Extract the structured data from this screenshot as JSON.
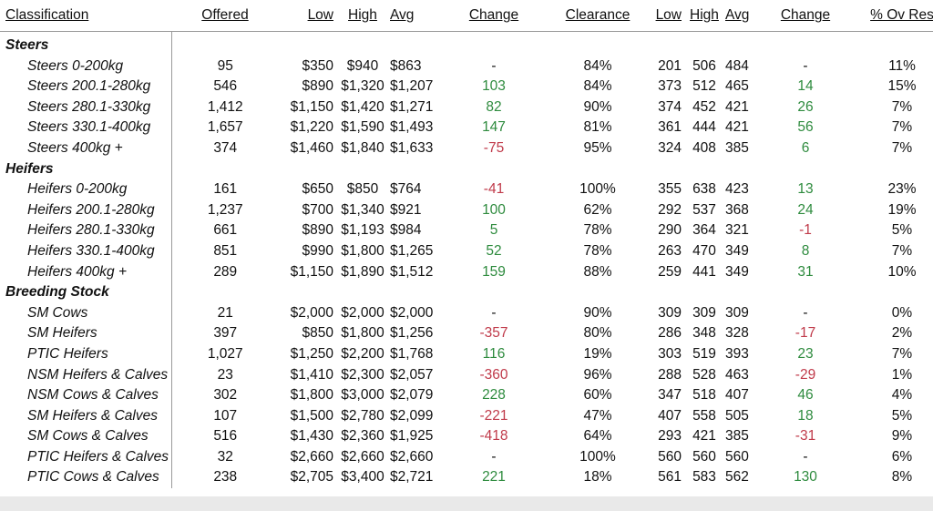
{
  "headers": {
    "classification": "Classification",
    "offered": "Offered",
    "low": "Low",
    "high": "High",
    "avg": "Avg",
    "change": "Change",
    "clearance": "Clearance",
    "low2": "Low",
    "high2": "High",
    "avg2": "Avg",
    "change2": "Change",
    "pct_ov_res": "% Ov Res"
  },
  "colors": {
    "positive": "#2e8b3e",
    "negative": "#c03a4a"
  },
  "groups": [
    {
      "title": "Steers",
      "rows": [
        {
          "name": "Steers 0-200kg",
          "offered": "95",
          "low": "$350",
          "high": "$940",
          "avg": "$863",
          "change": "-",
          "clearance": "84%",
          "low2": "201",
          "high2": "506",
          "avg2": "484",
          "change2": "-",
          "res": "11%"
        },
        {
          "name": "Steers 200.1-280kg",
          "offered": "546",
          "low": "$890",
          "high": "$1,320",
          "avg": "$1,207",
          "change": "103",
          "clearance": "84%",
          "low2": "373",
          "high2": "512",
          "avg2": "465",
          "change2": "14",
          "res": "15%"
        },
        {
          "name": "Steers 280.1-330kg",
          "offered": "1,412",
          "low": "$1,150",
          "high": "$1,420",
          "avg": "$1,271",
          "change": "82",
          "clearance": "90%",
          "low2": "374",
          "high2": "452",
          "avg2": "421",
          "change2": "26",
          "res": "7%"
        },
        {
          "name": "Steers 330.1-400kg",
          "offered": "1,657",
          "low": "$1,220",
          "high": "$1,590",
          "avg": "$1,493",
          "change": "147",
          "clearance": "81%",
          "low2": "361",
          "high2": "444",
          "avg2": "421",
          "change2": "56",
          "res": "7%"
        },
        {
          "name": "Steers 400kg +",
          "offered": "374",
          "low": "$1,460",
          "high": "$1,840",
          "avg": "$1,633",
          "change": "-75",
          "clearance": "95%",
          "low2": "324",
          "high2": "408",
          "avg2": "385",
          "change2": "6",
          "res": "7%"
        }
      ]
    },
    {
      "title": "Heifers",
      "rows": [
        {
          "name": "Heifers 0-200kg",
          "offered": "161",
          "low": "$650",
          "high": "$850",
          "avg": "$764",
          "change": "-41",
          "clearance": "100%",
          "low2": "355",
          "high2": "638",
          "avg2": "423",
          "change2": "13",
          "res": "23%"
        },
        {
          "name": "Heifers 200.1-280kg",
          "offered": "1,237",
          "low": "$700",
          "high": "$1,340",
          "avg": "$921",
          "change": "100",
          "clearance": "62%",
          "low2": "292",
          "high2": "537",
          "avg2": "368",
          "change2": "24",
          "res": "19%"
        },
        {
          "name": "Heifers 280.1-330kg",
          "offered": "661",
          "low": "$890",
          "high": "$1,193",
          "avg": "$984",
          "change": "5",
          "clearance": "78%",
          "low2": "290",
          "high2": "364",
          "avg2": "321",
          "change2": "-1",
          "res": "5%"
        },
        {
          "name": "Heifers 330.1-400kg",
          "offered": "851",
          "low": "$990",
          "high": "$1,800",
          "avg": "$1,265",
          "change": "52",
          "clearance": "78%",
          "low2": "263",
          "high2": "470",
          "avg2": "349",
          "change2": "8",
          "res": "7%"
        },
        {
          "name": "Heifers 400kg +",
          "offered": "289",
          "low": "$1,150",
          "high": "$1,890",
          "avg": "$1,512",
          "change": "159",
          "clearance": "88%",
          "low2": "259",
          "high2": "441",
          "avg2": "349",
          "change2": "31",
          "res": "10%"
        }
      ]
    },
    {
      "title": "Breeding Stock",
      "rows": [
        {
          "name": "SM Cows",
          "offered": "21",
          "low": "$2,000",
          "high": "$2,000",
          "avg": "$2,000",
          "change": "-",
          "clearance": "90%",
          "low2": "309",
          "high2": "309",
          "avg2": "309",
          "change2": "-",
          "res": "0%"
        },
        {
          "name": "SM Heifers",
          "offered": "397",
          "low": "$850",
          "high": "$1,800",
          "avg": "$1,256",
          "change": "-357",
          "clearance": "80%",
          "low2": "286",
          "high2": "348",
          "avg2": "328",
          "change2": "-17",
          "res": "2%"
        },
        {
          "name": "PTIC Heifers",
          "offered": "1,027",
          "low": "$1,250",
          "high": "$2,200",
          "avg": "$1,768",
          "change": "116",
          "clearance": "19%",
          "low2": "303",
          "high2": "519",
          "avg2": "393",
          "change2": "23",
          "res": "7%"
        },
        {
          "name": "NSM Heifers & Calves",
          "offered": "23",
          "low": "$1,410",
          "high": "$2,300",
          "avg": "$2,057",
          "change": "-360",
          "clearance": "96%",
          "low2": "288",
          "high2": "528",
          "avg2": "463",
          "change2": "-29",
          "res": "1%"
        },
        {
          "name": "NSM Cows & Calves",
          "offered": "302",
          "low": "$1,800",
          "high": "$3,000",
          "avg": "$2,079",
          "change": "228",
          "clearance": "60%",
          "low2": "347",
          "high2": "518",
          "avg2": "407",
          "change2": "46",
          "res": "4%"
        },
        {
          "name": "SM Heifers & Calves",
          "offered": "107",
          "low": "$1,500",
          "high": "$2,780",
          "avg": "$2,099",
          "change": "-221",
          "clearance": "47%",
          "low2": "407",
          "high2": "558",
          "avg2": "505",
          "change2": "18",
          "res": "5%"
        },
        {
          "name": "SM Cows & Calves",
          "offered": "516",
          "low": "$1,430",
          "high": "$2,360",
          "avg": "$1,925",
          "change": "-418",
          "clearance": "64%",
          "low2": "293",
          "high2": "421",
          "avg2": "385",
          "change2": "-31",
          "res": "9%"
        },
        {
          "name": "PTIC Heifers & Calves",
          "offered": "32",
          "low": "$2,660",
          "high": "$2,660",
          "avg": "$2,660",
          "change": "-",
          "clearance": "100%",
          "low2": "560",
          "high2": "560",
          "avg2": "560",
          "change2": "-",
          "res": "6%"
        },
        {
          "name": "PTIC Cows & Calves",
          "offered": "238",
          "low": "$2,705",
          "high": "$3,400",
          "avg": "$2,721",
          "change": "221",
          "clearance": "18%",
          "low2": "561",
          "high2": "583",
          "avg2": "562",
          "change2": "130",
          "res": "8%"
        }
      ]
    }
  ]
}
